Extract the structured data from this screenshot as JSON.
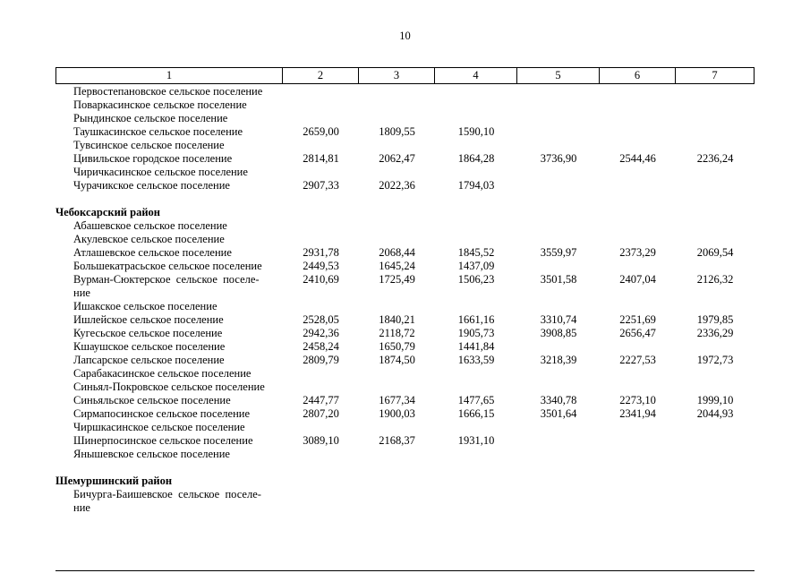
{
  "page": {
    "number": "10"
  },
  "table": {
    "headers": [
      "1",
      "2",
      "3",
      "4",
      "5",
      "6",
      "7"
    ],
    "sections": [
      {
        "title": "",
        "rows": [
          {
            "name": "Первостепановское сельское поселение",
            "values": [
              "",
              "",
              "",
              "",
              "",
              ""
            ]
          },
          {
            "name": "Поваркасинское сельское поселение",
            "values": [
              "",
              "",
              "",
              "",
              "",
              ""
            ]
          },
          {
            "name": "Рындинское сельское поселение",
            "values": [
              "",
              "",
              "",
              "",
              "",
              ""
            ]
          },
          {
            "name": "Таушкасинское сельское поселение",
            "values": [
              "2659,00",
              "1809,55",
              "1590,10",
              "",
              "",
              ""
            ]
          },
          {
            "name": "Тувсинское сельское поселение",
            "values": [
              "",
              "",
              "",
              "",
              "",
              ""
            ]
          },
          {
            "name": "Цивильское городское поселение",
            "values": [
              "2814,81",
              "2062,47",
              "1864,28",
              "3736,90",
              "2544,46",
              "2236,24"
            ]
          },
          {
            "name": "Чиричкасинское сельское поселение",
            "values": [
              "",
              "",
              "",
              "",
              "",
              ""
            ]
          },
          {
            "name": "Чурачикское сельское поселение",
            "values": [
              "2907,33",
              "2022,36",
              "1794,03",
              "",
              "",
              ""
            ]
          }
        ]
      },
      {
        "title": "Чебоксарский район",
        "rows": [
          {
            "name": "Абашевское сельское поселение",
            "values": [
              "",
              "",
              "",
              "",
              "",
              ""
            ]
          },
          {
            "name": "Акулевское сельское поселение",
            "values": [
              "",
              "",
              "",
              "",
              "",
              ""
            ]
          },
          {
            "name": "Атлашевское сельское поселение",
            "values": [
              "2931,78",
              "2068,44",
              "1845,52",
              "3559,97",
              "2373,29",
              "2069,54"
            ]
          },
          {
            "name": "Большекатрасьское сельское поселение",
            "values": [
              "2449,53",
              "1645,24",
              "1437,09",
              "",
              "",
              ""
            ]
          },
          {
            "name": "Вурман-Сюктерское  сельское  поселе-\nние",
            "values": [
              "2410,69",
              "1725,49",
              "1506,23",
              "3501,58",
              "2407,04",
              "2126,32"
            ]
          },
          {
            "name": "Ишакское сельское поселение",
            "values": [
              "",
              "",
              "",
              "",
              "",
              ""
            ]
          },
          {
            "name": "Ишлейское сельское поселение",
            "values": [
              "2528,05",
              "1840,21",
              "1661,16",
              "3310,74",
              "2251,69",
              "1979,85"
            ]
          },
          {
            "name": "Кугесьское сельское поселение",
            "values": [
              "2942,36",
              "2118,72",
              "1905,73",
              "3908,85",
              "2656,47",
              "2336,29"
            ]
          },
          {
            "name": "Кшаушское сельское поселение",
            "values": [
              "2458,24",
              "1650,79",
              "1441,84",
              "",
              "",
              ""
            ]
          },
          {
            "name": "Лапсарское сельское поселение",
            "values": [
              "2809,79",
              "1874,50",
              "1633,59",
              "3218,39",
              "2227,53",
              "1972,73"
            ]
          },
          {
            "name": "Сарабакасинское сельское поселение",
            "values": [
              "",
              "",
              "",
              "",
              "",
              ""
            ]
          },
          {
            "name": "Синьял-Покровское сельское поселение",
            "values": [
              "",
              "",
              "",
              "",
              "",
              ""
            ]
          },
          {
            "name": "Синьяльское сельское поселение",
            "values": [
              "2447,77",
              "1677,34",
              "1477,65",
              "3340,78",
              "2273,10",
              "1999,10"
            ]
          },
          {
            "name": "Сирмапосинское сельское поселение",
            "values": [
              "2807,20",
              "1900,03",
              "1666,15",
              "3501,64",
              "2341,94",
              "2044,93"
            ]
          },
          {
            "name": "Чиршкасинское сельское поселение",
            "values": [
              "",
              "",
              "",
              "",
              "",
              ""
            ]
          },
          {
            "name": "Шинерпосинское сельское поселение",
            "values": [
              "3089,10",
              "2168,37",
              "1931,10",
              "",
              "",
              ""
            ]
          },
          {
            "name": "Янышевское сельское поселение",
            "values": [
              "",
              "",
              "",
              "",
              "",
              ""
            ]
          }
        ]
      },
      {
        "title": "Шемуршинский район",
        "rows": [
          {
            "name": "Бичурга-Баишевское  сельское  поселе-\nние",
            "values": [
              "",
              "",
              "",
              "",
              "",
              ""
            ]
          }
        ]
      }
    ]
  }
}
